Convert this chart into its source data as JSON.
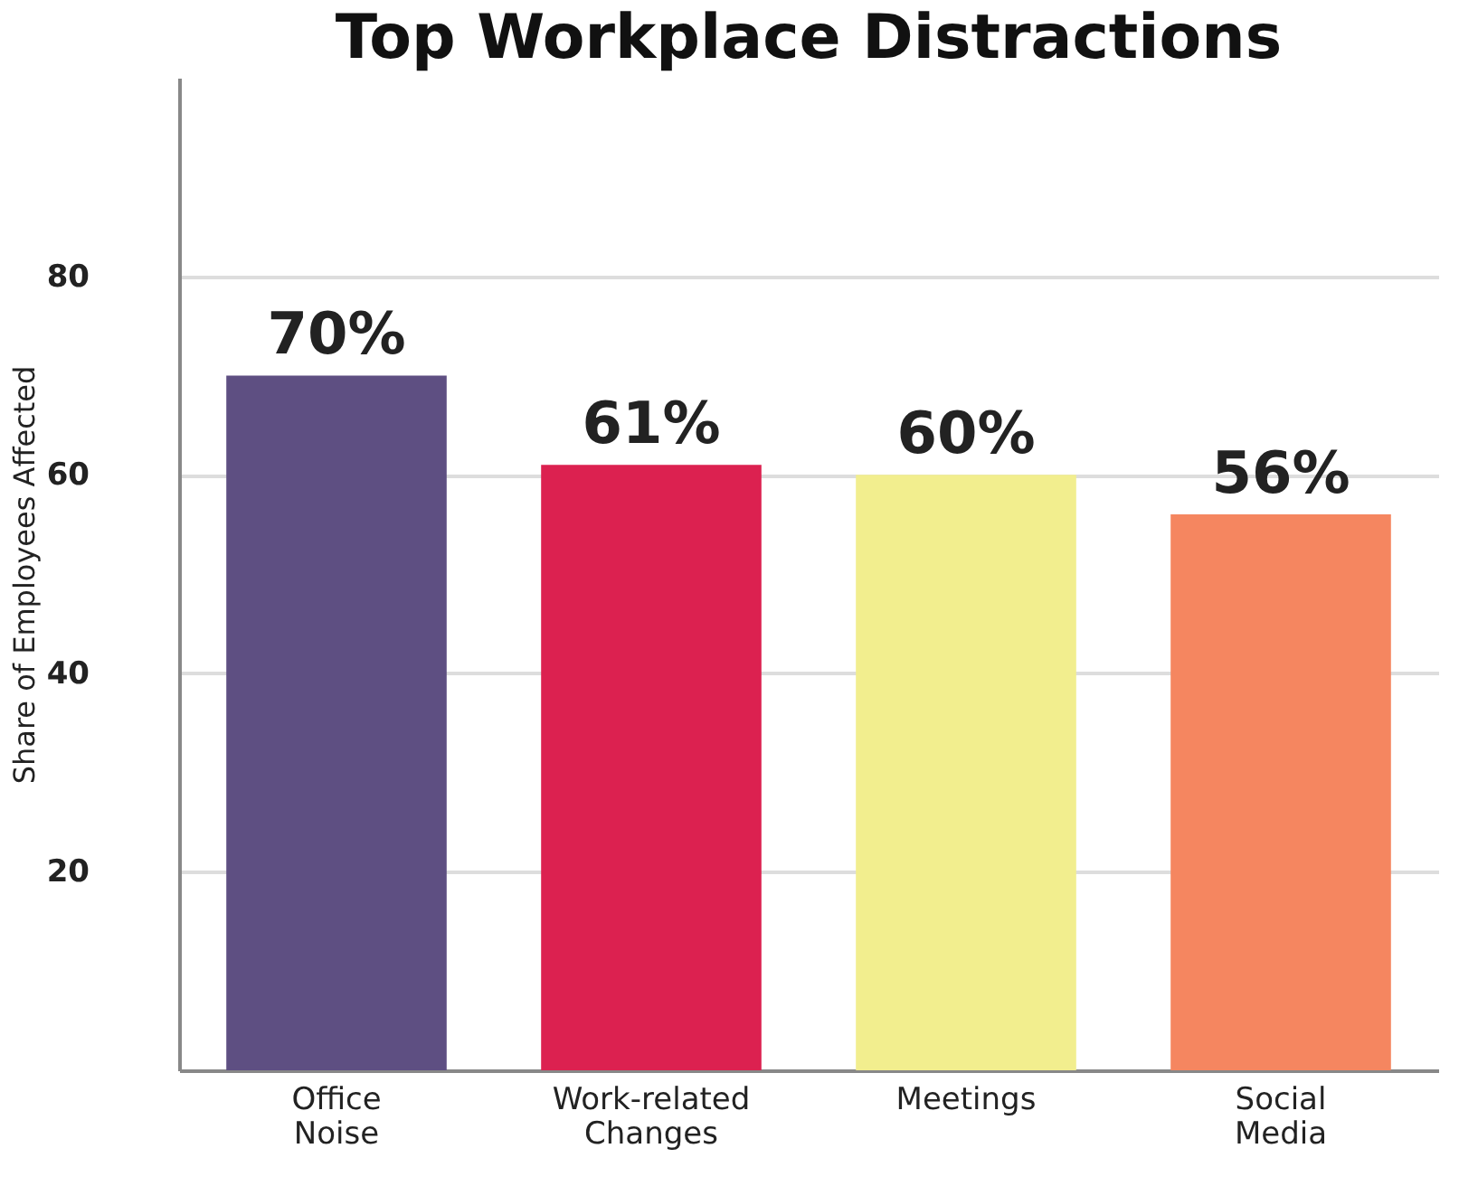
{
  "chart_data": {
    "type": "bar",
    "title": "Top Workplace Distractions",
    "ylabel": "Share of Employees Affected",
    "categories": [
      "Office Noise",
      "Work-related Changes",
      "Meetings",
      "Social Media"
    ],
    "values": [
      70,
      61,
      60,
      56
    ],
    "colors": [
      "#5e4f82",
      "#dc2150",
      "#f2ee8e",
      "#f58660"
    ],
    "value_labels": [
      "70%",
      "61%",
      "60%",
      "56%"
    ],
    "ylim": [
      0,
      100
    ],
    "yticks": [
      20,
      40,
      60,
      80
    ],
    "grid": "y"
  }
}
